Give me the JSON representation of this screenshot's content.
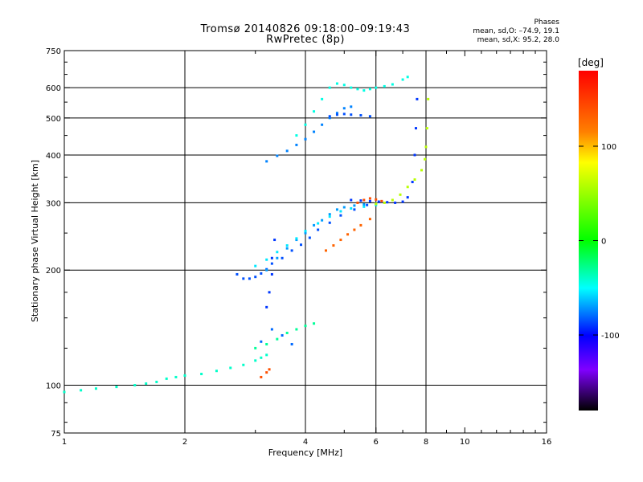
{
  "title_line1": "Tromsø 20140826 09:18:00–09:19:43",
  "title_line2": "RwPretec (8p)",
  "phase_stats": {
    "heading": "Phases",
    "o_line": "mean, sd,O: –74.9, 19.1",
    "x_line": "mean, sd,X:  95.2, 28.0"
  },
  "chart_data": {
    "type": "scatter",
    "title": "Tromsø 20140826 09:18:00–09:19:43",
    "subtitle": "RwPretec (8p)",
    "xlabel": "Frequency [MHz]",
    "ylabel": "Stationary phase Virtual Height [km]",
    "x_scale": "log",
    "y_scale": "log",
    "xlim": [
      1,
      16
    ],
    "ylim": [
      75,
      750
    ],
    "x_ticks": [
      1,
      2,
      4,
      6,
      8,
      10,
      16
    ],
    "y_ticks": [
      75,
      100,
      200,
      300,
      400,
      500,
      600,
      750
    ],
    "x_gridlines": [
      2,
      4,
      6,
      8
    ],
    "y_gridlines": [
      100,
      200,
      300,
      400,
      500,
      600
    ],
    "grid": true,
    "colorbar": {
      "label": "[deg]",
      "ticks": [
        100,
        0,
        -100
      ],
      "range": [
        -180,
        180
      ],
      "colormap": "rainbow",
      "colors": [
        "#ff0000",
        "#ff8000",
        "#ffff00",
        "#00ff00",
        "#00ffff",
        "#0000ff",
        "#8000ff",
        "#000000"
      ]
    },
    "series": [
      {
        "traces": [
          {
            "x": [
              1.0,
              1.1,
              1.2,
              1.35,
              1.5,
              1.6,
              1.7,
              1.8,
              1.9,
              2.0,
              2.2,
              2.4,
              2.6,
              2.8,
              3.0,
              3.1,
              3.2
            ],
            "y": [
              96,
              97,
              98,
              99,
              100,
              101,
              102,
              104,
              105,
              106,
              107,
              109,
              111,
              113,
              116,
              118,
              120
            ],
            "phase": -40
          },
          {
            "x": [
              2.7,
              2.8,
              2.9,
              3.0,
              3.1,
              3.2,
              3.3,
              3.5,
              3.7,
              3.9,
              4.1,
              4.3,
              4.6,
              4.9,
              5.3,
              5.7,
              6.2
            ],
            "y": [
              195,
              190,
              190,
              192,
              196,
              201,
              208,
              215,
              225,
              233,
              243,
              255,
              266,
              278,
              288,
              296,
              302
            ],
            "phase": -85
          },
          {
            "x": [
              3.2,
              3.4,
              3.6,
              3.8,
              4.0,
              4.2,
              4.4,
              4.6,
              4.8,
              5.0,
              5.3,
              5.6,
              6.0
            ],
            "y": [
              200,
              215,
              228,
              240,
              250,
              262,
              270,
              280,
              288,
              292,
              295,
              297,
              298
            ],
            "phase": -70
          },
          {
            "x": [
              3.0,
              3.2,
              3.4,
              3.6,
              3.8,
              4.0,
              4.3,
              4.6,
              4.9,
              5.2,
              5.6,
              6.0
            ],
            "y": [
              205,
              213,
              223,
              232,
              242,
              253,
              265,
              276,
              285,
              290,
              293,
              296
            ],
            "phase": -55
          },
          {
            "x": [
              5.2,
              5.5,
              5.8,
              6.1,
              6.4,
              6.7,
              7.0,
              7.2,
              7.4,
              7.5,
              7.55,
              7.6
            ],
            "y": [
              305,
              304,
              303,
              302,
              301,
              300,
              302,
              310,
              340,
              400,
              470,
              560
            ],
            "phase": -90
          },
          {
            "x": [
              6.0,
              6.3,
              6.6,
              6.9,
              7.2,
              7.5,
              7.8,
              7.95,
              8.0,
              8.05,
              8.1
            ],
            "y": [
              298,
              300,
              305,
              315,
              330,
              345,
              365,
              390,
              420,
              470,
              560
            ],
            "phase": 60
          },
          {
            "x": [
              4.5,
              4.7,
              4.9,
              5.1,
              5.3,
              5.5,
              5.8
            ],
            "y": [
              225,
              232,
              240,
              248,
              255,
              262,
              272
            ],
            "phase": 130
          },
          {
            "x": [
              5.4,
              5.6,
              5.8,
              6.0,
              6.2
            ],
            "y": [
              300,
              305,
              308,
              306,
              303
            ],
            "phase": 140
          },
          {
            "x": [
              3.2,
              3.4,
              3.6,
              3.8,
              4.0,
              4.2,
              4.4,
              4.6,
              4.8,
              5.0,
              5.2
            ],
            "y": [
              385,
              398,
              410,
              425,
              440,
              460,
              480,
              500,
              515,
              530,
              535
            ],
            "phase": -75
          },
          {
            "x": [
              3.8,
              4.0,
              4.2,
              4.4,
              4.6,
              4.8,
              5.0,
              5.2,
              5.4,
              5.6,
              5.8,
              6.0,
              6.3,
              6.6,
              7.0,
              7.2
            ],
            "y": [
              450,
              480,
              520,
              560,
              600,
              615,
              610,
              600,
              595,
              590,
              595,
              600,
              605,
              612,
              630,
              640
            ],
            "phase": -45
          },
          {
            "x": [
              4.6,
              4.8,
              5.0,
              5.2,
              5.5,
              5.8
            ],
            "y": [
              505,
              510,
              512,
              510,
              508,
              505
            ],
            "phase": -85
          },
          {
            "x": [
              3.0,
              3.2,
              3.4,
              3.6,
              3.8,
              4.0,
              4.2
            ],
            "y": [
              125,
              128,
              132,
              137,
              140,
              143,
              145
            ],
            "phase": -30
          },
          {
            "x": [
              3.1,
              3.3,
              3.5,
              3.7
            ],
            "y": [
              130,
              140,
              135,
              128
            ],
            "phase": -80
          },
          {
            "x": [
              3.1,
              3.2,
              3.25
            ],
            "y": [
              105,
              108,
              110
            ],
            "phase": 140
          },
          {
            "x": [
              3.2,
              3.25,
              3.3,
              3.3,
              3.35
            ],
            "y": [
              160,
              175,
              195,
              215,
              240
            ],
            "phase": -90
          }
        ]
      }
    ]
  }
}
